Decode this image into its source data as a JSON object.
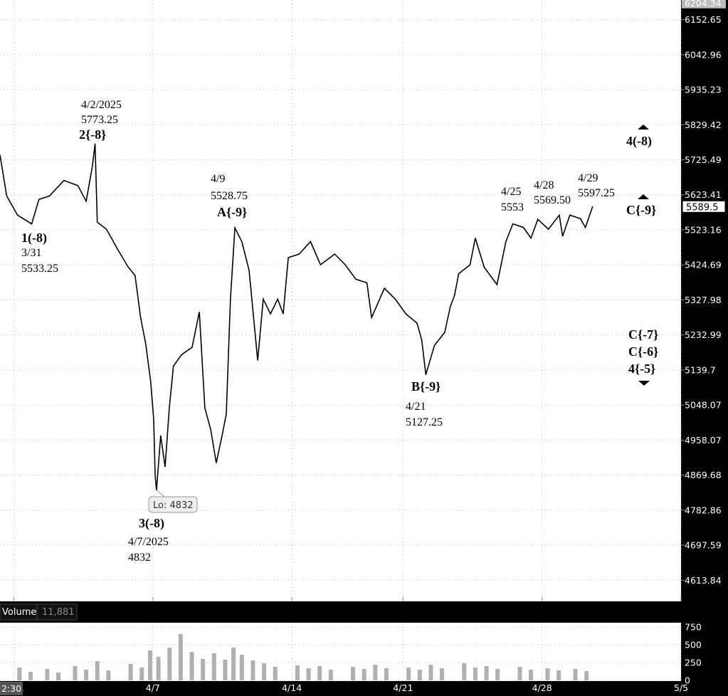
{
  "chart_data": [
    {
      "type": "line",
      "log_scale": true,
      "color": "#000000",
      "grid": true,
      "x": [
        -0.5,
        -0.26,
        0.13,
        0.64,
        0.9,
        1.28,
        1.8,
        2.3,
        2.6,
        2.82,
        2.92,
        3.0,
        3.33,
        3.72,
        4.1,
        4.36,
        4.56,
        4.74,
        4.92,
        5.03,
        5.08,
        5.13,
        5.28,
        5.44,
        5.59,
        5.74,
        6.03,
        6.41,
        6.67,
        6.87,
        7.08,
        7.28,
        7.49,
        7.64,
        7.79,
        7.95,
        8.2,
        8.46,
        8.77,
        8.97,
        9.23,
        9.49,
        9.69,
        9.87,
        10.26,
        10.67,
        11.03,
        11.54,
        11.92,
        12.3,
        12.7,
        12.87,
        13.33,
        13.72,
        14.1,
        14.5,
        14.67,
        14.82,
        15.13,
        15.5,
        15.7,
        15.85,
        16.0,
        16.41,
        16.6,
        16.92,
        17.38,
        17.7,
        17.95,
        18.33,
        18.6,
        18.85,
        19.23,
        19.62,
        19.74,
        20.0,
        20.38,
        20.56,
        20.82
      ],
      "values": [
        5740,
        5620,
        5565,
        5540,
        5610,
        5620,
        5665,
        5650,
        5605,
        5705,
        5773.25,
        5545,
        5525,
        5470,
        5420,
        5395,
        5280,
        5210,
        5110,
        5010,
        4870,
        4832,
        4970,
        4890,
        5040,
        5150,
        5180,
        5200,
        5295,
        5040,
        4985,
        4900,
        4970,
        5025,
        5330,
        5528.75,
        5490,
        5410,
        5165,
        5330,
        5290,
        5330,
        5290,
        5445,
        5455,
        5490,
        5425,
        5455,
        5425,
        5385,
        5375,
        5280,
        5360,
        5330,
        5290,
        5265,
        5220,
        5127.25,
        5205,
        5240,
        5310,
        5340,
        5400,
        5425,
        5500,
        5418,
        5370,
        5490,
        5540,
        5530,
        5500,
        5553,
        5525,
        5565,
        5505,
        5565,
        5555,
        5530,
        5590
      ],
      "ylim": [
        4564,
        6215
      ],
      "yticks": [
        6204.34,
        6152.65,
        6042.96,
        5935.23,
        5829.42,
        5725.49,
        5623.41,
        5523.16,
        5424.69,
        5327.98,
        5232.99,
        5139.7,
        5048.07,
        4958.07,
        4869.68,
        4782.86,
        4697.59,
        4613.84
      ],
      "xlim": [
        -0.5,
        24
      ],
      "xticks": [
        {
          "value": 0,
          "label": "3/31"
        },
        {
          "value": 5,
          "label": "4/7"
        },
        {
          "value": 10,
          "label": "4/14"
        },
        {
          "value": 14,
          "label": "4/21"
        },
        {
          "value": 19,
          "label": "4/28"
        },
        {
          "value": 24,
          "label": "5/5"
        }
      ],
      "current": 5589.5,
      "time_label": "2:30",
      "low_callout": "Lo: 4832",
      "annotations": [
        "4/2/2025",
        "5773.25",
        "2{-8}",
        "1(-8)",
        "3/31",
        "5533.25",
        "4/9",
        "5528.75",
        "A{-9}",
        "3(-8)",
        "4/7/2025",
        "4832",
        "B{-9}",
        "4/21",
        "5127.25",
        "4/25",
        "5553",
        "4/28",
        "5569.50",
        "4/29",
        "5597.25",
        "4(-8)",
        "C{-9}",
        "C{-7}",
        "C{-6}",
        "4{-5}"
      ]
    },
    {
      "type": "bar",
      "label": "Volume",
      "current": {
        "value": 11881,
        "label": "11,881"
      },
      "color": "#b0b0b0",
      "x": [
        0.2,
        0.6,
        1.2,
        1.6,
        2.2,
        2.6,
        3.0,
        3.4,
        4.2,
        4.6,
        4.9,
        5.2,
        5.6,
        6.0,
        6.4,
        6.8,
        7.2,
        7.6,
        7.9,
        8.2,
        8.6,
        9.0,
        9.4,
        10.2,
        10.6,
        11.0,
        11.4,
        12.2,
        12.6,
        13.0,
        13.4,
        14.2,
        14.6,
        15.0,
        15.4,
        16.2,
        16.6,
        17.0,
        17.4,
        18.2,
        18.6,
        19.2,
        19.6,
        20.2,
        20.6
      ],
      "values": [
        180,
        120,
        160,
        110,
        200,
        150,
        270,
        140,
        230,
        180,
        420,
        330,
        460,
        650,
        400,
        300,
        380,
        290,
        460,
        360,
        280,
        240,
        190,
        210,
        170,
        200,
        150,
        190,
        160,
        220,
        170,
        180,
        150,
        220,
        170,
        240,
        180,
        200,
        160,
        190,
        150,
        170,
        140,
        160,
        130
      ],
      "ylim": [
        0,
        810
      ],
      "yticks": [
        750,
        500,
        250,
        0
      ]
    }
  ]
}
